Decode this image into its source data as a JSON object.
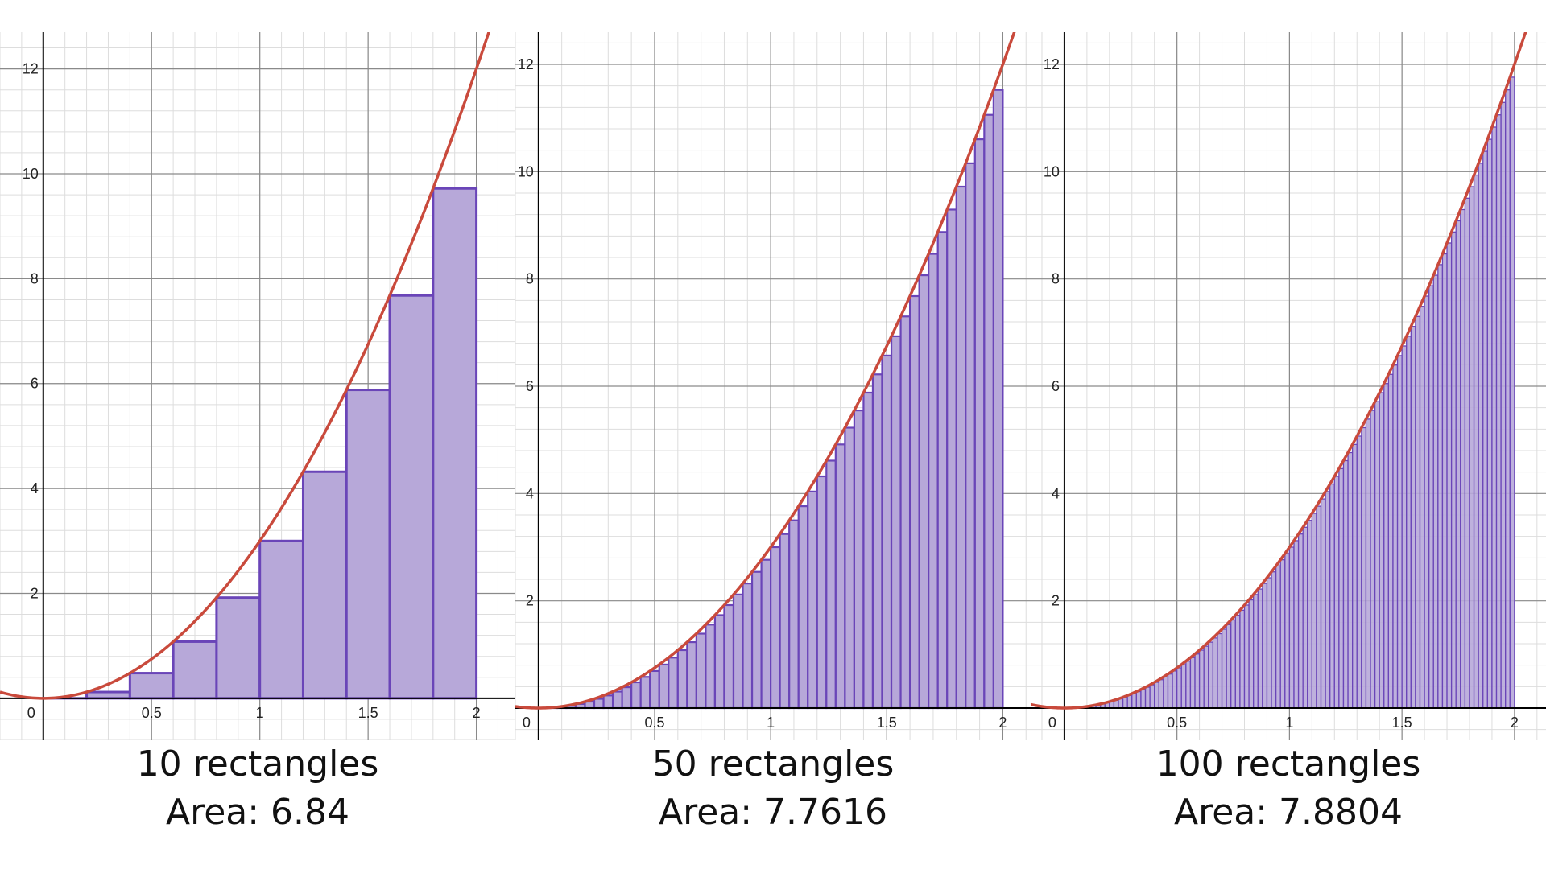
{
  "colors": {
    "curve": "#c94a3c",
    "bar_fill": "#b7a8d9",
    "bar_stroke": "#6a45b8",
    "axis": "#000000",
    "grid_major": "#8a8a8a",
    "grid_minor": "#dddddd"
  },
  "chart_data": [
    {
      "type": "bar",
      "function": "y = 3x^2",
      "n_rectangles": 10,
      "x_range": [
        0,
        2
      ],
      "xlim": [
        -0.2,
        2.18
      ],
      "ylim": [
        -0.8,
        12.7
      ],
      "x_ticks": [
        "0.5",
        "1",
        "1.5",
        "2"
      ],
      "y_ticks": [
        "2",
        "4",
        "6",
        "8",
        "10",
        "12"
      ],
      "origin_label": "0",
      "grid": true,
      "caption": "10 rectangles",
      "area_label": "Area: 6.84",
      "area_value": 6.84
    },
    {
      "type": "bar",
      "function": "y = 3x^2",
      "n_rectangles": 50,
      "x_range": [
        0,
        2
      ],
      "xlim": [
        -0.1,
        2.12
      ],
      "ylim": [
        -0.6,
        12.6
      ],
      "x_ticks": [
        "0.5",
        "1",
        "1.5",
        "2"
      ],
      "y_ticks": [
        "2",
        "4",
        "6",
        "8",
        "10",
        "12"
      ],
      "origin_label": "0",
      "grid": true,
      "caption": "50 rectangles",
      "area_label": "Area: 7.7616",
      "area_value": 7.7616
    },
    {
      "type": "bar",
      "function": "y = 3x^2",
      "n_rectangles": 100,
      "x_range": [
        0,
        2
      ],
      "xlim": [
        -0.15,
        2.14
      ],
      "ylim": [
        -0.6,
        12.6
      ],
      "x_ticks": [
        "0.5",
        "1",
        "1.5",
        "2"
      ],
      "y_ticks": [
        "2",
        "4",
        "6",
        "8",
        "10",
        "12"
      ],
      "origin_label": "0",
      "grid": true,
      "caption": "100 rectangles",
      "area_label": "Area: 7.8804",
      "area_value": 7.8804
    }
  ]
}
